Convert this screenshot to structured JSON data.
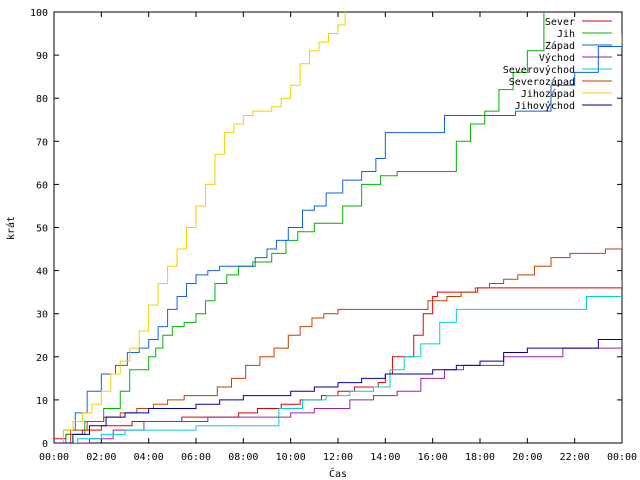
{
  "chart_data": {
    "type": "line",
    "xlabel": "Čas",
    "ylabel": "krát",
    "xlim": [
      0,
      24
    ],
    "ylim": [
      0,
      100
    ],
    "x_ticks": [
      {
        "value": 0,
        "label": "00:00"
      },
      {
        "value": 2,
        "label": "02:00"
      },
      {
        "value": 4,
        "label": "04:00"
      },
      {
        "value": 6,
        "label": "06:00"
      },
      {
        "value": 8,
        "label": "08:00"
      },
      {
        "value": 10,
        "label": "10:00"
      },
      {
        "value": 12,
        "label": "12:00"
      },
      {
        "value": 14,
        "label": "14:00"
      },
      {
        "value": 16,
        "label": "16:00"
      },
      {
        "value": 18,
        "label": "18:00"
      },
      {
        "value": 20,
        "label": "20:00"
      },
      {
        "value": 22,
        "label": "22:00"
      },
      {
        "value": 24,
        "label": "00:00"
      }
    ],
    "y_ticks": [
      0,
      10,
      20,
      30,
      40,
      50,
      60,
      70,
      80,
      90,
      100
    ],
    "grid": false,
    "legend_position": "top-right",
    "series": [
      {
        "name": "Sever",
        "color": "#e00000",
        "x": [
          0,
          0.5,
          1.2,
          2.0,
          3.3,
          4.4,
          5.4,
          6.3,
          7.2,
          7.8,
          8.6,
          9.6,
          10.4,
          11.3,
          12.0,
          12.7,
          13.7,
          14.0,
          14.3,
          15.2,
          15.6,
          16.0,
          16.2,
          16.8,
          17.3,
          17.9,
          18.7,
          24.0
        ],
        "y": [
          1,
          2,
          3,
          4,
          5,
          5,
          6,
          6,
          6,
          7,
          8,
          9,
          10,
          11,
          12,
          13,
          14,
          16,
          20,
          25,
          30,
          34,
          35,
          35,
          35,
          36,
          36,
          38
        ]
      },
      {
        "name": "Jih",
        "color": "#00b000",
        "x": [
          0,
          0.5,
          1.3,
          2.1,
          2.8,
          3.2,
          4.0,
          4.3,
          4.6,
          5.0,
          5.5,
          6.0,
          6.4,
          6.8,
          7.3,
          7.8,
          8.4,
          9.2,
          9.8,
          10.3,
          11.0,
          11.7,
          12.2,
          13.0,
          13.8,
          14.5,
          15.2,
          15.9,
          16.4,
          17.0,
          17.6,
          18.2,
          18.8,
          19.4,
          20.0,
          20.7
        ],
        "y": [
          0,
          2,
          5,
          8,
          12,
          17,
          20,
          22,
          25,
          27,
          28,
          30,
          33,
          37,
          39,
          41,
          42,
          44,
          47,
          49,
          51,
          51,
          55,
          60,
          62,
          63,
          63,
          63,
          63,
          70,
          74,
          77,
          82,
          86,
          91,
          100
        ]
      },
      {
        "name": "Západ",
        "color": "#1060e0",
        "x": [
          0,
          0.4,
          0.9,
          1.4,
          2.0,
          2.6,
          3.1,
          3.6,
          4.0,
          4.4,
          4.8,
          5.2,
          5.6,
          6.0,
          6.5,
          7.0,
          7.5,
          8.0,
          8.5,
          9.0,
          9.4,
          9.9,
          10.5,
          11.0,
          11.5,
          12.2,
          13.0,
          13.6,
          14.0,
          15.5,
          16.5,
          17.5,
          18.5,
          19.5,
          21.0,
          22.0,
          23.0,
          24.0
        ],
        "y": [
          0,
          3,
          7,
          12,
          16,
          18,
          21,
          22,
          24,
          27,
          31,
          34,
          37,
          39,
          40,
          41,
          41,
          41,
          43,
          45,
          47,
          50,
          54,
          55,
          58,
          61,
          63,
          66,
          72,
          72,
          76,
          76,
          76,
          77,
          83,
          86,
          92,
          95
        ]
      },
      {
        "name": "Východ",
        "color": "#a020a0",
        "x": [
          0,
          1.5,
          2.5,
          3.8,
          5.0,
          6.5,
          7.5,
          8.8,
          10.0,
          11.0,
          12.5,
          13.5,
          14.5,
          15.5,
          16.5,
          17.3,
          18.0,
          19.0,
          20.5,
          21.5,
          22.5,
          24.0
        ],
        "y": [
          0,
          1,
          3,
          5,
          5,
          6,
          6,
          6,
          7,
          8,
          10,
          11,
          12,
          15,
          17,
          18,
          18,
          20,
          20,
          22,
          22,
          22
        ]
      },
      {
        "name": "Severovýchod",
        "color": "#00d0d0",
        "x": [
          0,
          1.0,
          2.0,
          3.0,
          4.0,
          6.0,
          8.5,
          9.5,
          10.5,
          11.5,
          12.5,
          13.5,
          14.2,
          14.8,
          15.5,
          16.3,
          17.0,
          18.0,
          19.0,
          20.0,
          21.0,
          22.5,
          24.0
        ],
        "y": [
          0,
          1,
          2,
          3,
          3,
          4,
          4,
          8,
          10,
          11,
          12,
          13,
          17,
          20,
          23,
          28,
          31,
          31,
          31,
          31,
          31,
          34,
          34
        ]
      },
      {
        "name": "Severozápad",
        "color": "#c04000",
        "x": [
          0,
          0.7,
          1.4,
          2.1,
          2.8,
          3.5,
          4.2,
          4.8,
          5.5,
          6.2,
          6.9,
          7.5,
          8.1,
          8.7,
          9.3,
          9.9,
          10.4,
          10.9,
          11.4,
          12.0,
          13.0,
          14.0,
          15.0,
          15.8,
          16.6,
          17.2,
          17.8,
          18.4,
          19.0,
          19.6,
          20.3,
          21.0,
          21.8,
          22.6,
          23.3,
          24.0
        ],
        "y": [
          0,
          3,
          5,
          6,
          7,
          8,
          9,
          10,
          11,
          11,
          13,
          15,
          18,
          20,
          22,
          25,
          27,
          29,
          30,
          31,
          31,
          31,
          31,
          33,
          34,
          35,
          36,
          37,
          38,
          39,
          41,
          43,
          44,
          44,
          45,
          47
        ]
      },
      {
        "name": "Jihozápad",
        "color": "#f0d000",
        "x": [
          0,
          0.4,
          0.8,
          1.2,
          1.6,
          2.0,
          2.4,
          2.8,
          3.2,
          3.6,
          4.0,
          4.4,
          4.8,
          5.2,
          5.6,
          6.0,
          6.4,
          6.8,
          7.2,
          7.6,
          8.0,
          8.4,
          8.8,
          9.2,
          9.6,
          10.0,
          10.4,
          10.8,
          11.2,
          11.6,
          12.0,
          12.3
        ],
        "y": [
          0,
          3,
          5,
          7,
          9,
          12,
          16,
          19,
          22,
          26,
          32,
          37,
          41,
          45,
          50,
          55,
          60,
          67,
          72,
          74,
          76,
          77,
          77,
          78,
          80,
          83,
          88,
          91,
          93,
          95,
          97,
          100
        ]
      },
      {
        "name": "Jihovýchod",
        "color": "#0000a0",
        "x": [
          0,
          0.8,
          1.5,
          2.2,
          3.0,
          4.0,
          5.0,
          6.0,
          7.0,
          8.0,
          9.0,
          10.0,
          11.0,
          12.0,
          13.0,
          14.0,
          15.0,
          16.0,
          17.0,
          18.0,
          19.0,
          20.0,
          21.0,
          22.0,
          23.0,
          24.0
        ],
        "y": [
          0,
          2,
          4,
          6,
          7,
          8,
          8,
          9,
          10,
          11,
          11,
          12,
          13,
          14,
          15,
          16,
          16,
          17,
          18,
          19,
          21,
          22,
          22,
          22,
          24,
          25
        ]
      }
    ]
  }
}
